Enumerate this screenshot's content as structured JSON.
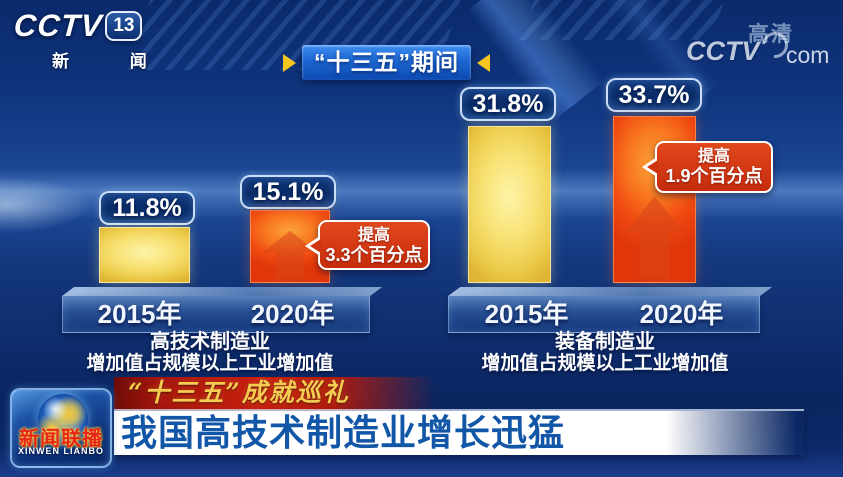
{
  "header": {
    "channel_logo": {
      "brand": "CCTV",
      "channel_number": "13",
      "channel_name": "新 闻"
    },
    "watermark": {
      "brand": "CCTV",
      "hd": "高清",
      "domain": "com"
    },
    "period_banner": "“十三五”期间"
  },
  "chart_data": {
    "type": "bar",
    "title": "“十三五”期间",
    "unit": "%",
    "grid": false,
    "legend_position": "none",
    "groups": [
      {
        "name": "高技术制造业",
        "caption": [
          "高技术制造业",
          "增加值占规模以上工业增加值"
        ],
        "categories": [
          "2015年",
          "2020年"
        ],
        "values": [
          11.8,
          15.1
        ],
        "value_labels": [
          "11.8%",
          "15.1%"
        ],
        "callout": [
          "提高",
          "3.3个百分点"
        ]
      },
      {
        "name": "装备制造业",
        "caption": [
          "装备制造业",
          "增加值占规模以上工业增加值"
        ],
        "categories": [
          "2015年",
          "2020年"
        ],
        "values": [
          31.8,
          33.7
        ],
        "value_labels": [
          "31.8%",
          "33.7%"
        ],
        "callout": [
          "提高",
          "1.9个百分点"
        ]
      }
    ],
    "colors": {
      "bar_2015": "#f2d75c",
      "bar_2020": "#f05218",
      "callout_bg": "#cf2e0e",
      "banner_blue": "#1c66d2",
      "accent_gold": "#f6c51e"
    }
  },
  "footer": {
    "program_logo": {
      "title": "新闻联播",
      "subtitle": "XINWEN LIANBO"
    },
    "ribbon": "“十三五”成就巡礼",
    "headline": "我国高技术制造业增长迅猛"
  }
}
